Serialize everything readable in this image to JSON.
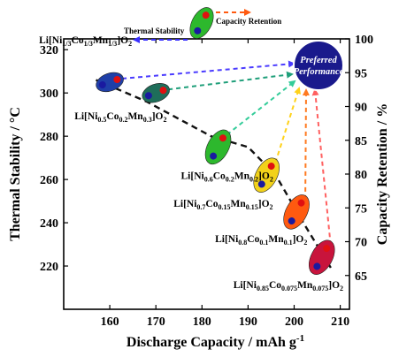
{
  "chart_data": {
    "type": "scatter",
    "title": "",
    "xlabel": "Discharge Capacity / mAh g",
    "xlabel_sup": "-1",
    "ylabel_left": "Thermal Stability / °C",
    "ylabel_right": "Capacity Retention / %",
    "xlim": [
      150,
      212
    ],
    "ylim_left": [
      200,
      325
    ],
    "ylim_right": [
      60,
      100
    ],
    "x_ticks": [
      160,
      170,
      180,
      190,
      200,
      210
    ],
    "y_left_ticks": [
      220,
      240,
      260,
      280,
      300,
      320
    ],
    "y_right_ticks": [
      65,
      70,
      75,
      80,
      85,
      90,
      95,
      100
    ],
    "legend": {
      "thermal": "Thermal Stability",
      "retention": "Capacity Retention",
      "position": "top-center"
    },
    "target": {
      "label_line1": "Preferred",
      "label_line2": "Performance",
      "color": "#1a1a8c"
    },
    "points": [
      {
        "name": "Li[Ni1/3Co1/3Mn1/3]O2",
        "x": 160,
        "thermal": 305,
        "retention": 95,
        "color": "#1f3fa8",
        "arrow": "#4b3cff",
        "label": [
          [
            "Li[Ni",
            ""
          ],
          [
            "1/3",
            "sub"
          ],
          [
            "Co",
            ""
          ],
          [
            "1/3",
            "sub"
          ],
          [
            "Mn",
            ""
          ],
          [
            "1/3",
            "sub"
          ],
          [
            "]O",
            ""
          ],
          [
            "2",
            "sub"
          ]
        ]
      },
      {
        "name": "Li[Ni0.5Co0.2Mn0.3]O2",
        "x": 170,
        "thermal": 300,
        "retention": 92.5,
        "color": "#1e6e5a",
        "arrow": "#1f9f7a",
        "label": [
          [
            "Li[Ni",
            ""
          ],
          [
            "0.5",
            "sub"
          ],
          [
            "Co",
            ""
          ],
          [
            "0.2",
            "sub"
          ],
          [
            "Mn",
            ""
          ],
          [
            "0.3",
            "sub"
          ],
          [
            "]O",
            ""
          ],
          [
            "2",
            "sub"
          ]
        ]
      },
      {
        "name": "Li[Ni0.6Co0.2Mn0.2]O2",
        "x": 183.5,
        "thermal": 275,
        "retention": 87,
        "color": "#2db82d",
        "arrow": "#33cc99",
        "label": [
          [
            "Li[Ni",
            ""
          ],
          [
            "0.6",
            "sub"
          ],
          [
            "Co",
            ""
          ],
          [
            "0.2",
            "sub"
          ],
          [
            "Mn",
            ""
          ],
          [
            "0.2",
            "sub"
          ],
          [
            "]O",
            ""
          ],
          [
            "2",
            "sub"
          ]
        ]
      },
      {
        "name": "Li[Ni0.7Co0.15Mn0.15]O2",
        "x": 194,
        "thermal": 262,
        "retention": 84,
        "color": "#f2d21a",
        "arrow": "#ffd21a",
        "label": [
          [
            "Li[Ni",
            ""
          ],
          [
            "0.7",
            "sub"
          ],
          [
            "Co",
            ""
          ],
          [
            "0.15",
            "sub"
          ],
          [
            "Mn",
            ""
          ],
          [
            "0.15",
            "sub"
          ],
          [
            "]O",
            ""
          ],
          [
            "2",
            "sub"
          ]
        ]
      },
      {
        "name": "Li[Ni0.8Co0.1Mn0.1]O2",
        "x": 200.5,
        "thermal": 245,
        "retention": 78,
        "color": "#ff5a10",
        "arrow": "#ff7a20",
        "label": [
          [
            "Li[Ni",
            ""
          ],
          [
            "0.8",
            "sub"
          ],
          [
            "Co",
            ""
          ],
          [
            "0.1",
            "sub"
          ],
          [
            "Mn",
            ""
          ],
          [
            "0.1",
            "sub"
          ],
          [
            "]O",
            ""
          ],
          [
            "2",
            "sub"
          ]
        ]
      },
      {
        "name": "Li[Ni0.85Co0.075Mn0.075]O2",
        "x": 206,
        "thermal": 224,
        "retention": 70.5,
        "color": "#c8143c",
        "arrow": "#ff6060",
        "label": [
          [
            "Li[Ni",
            ""
          ],
          [
            "0.85",
            "sub"
          ],
          [
            "Co",
            ""
          ],
          [
            "0.075",
            "sub"
          ],
          [
            "Mn",
            ""
          ],
          [
            "0.075",
            "sub"
          ],
          [
            "]O",
            ""
          ],
          [
            "2",
            "sub"
          ]
        ]
      }
    ],
    "trend_line": {
      "style": "dashed",
      "color": "#111111",
      "x": [
        157,
        168,
        182,
        190,
        196,
        202,
        208
      ],
      "y": [
        306,
        296,
        280,
        275,
        262,
        240,
        219
      ]
    }
  }
}
